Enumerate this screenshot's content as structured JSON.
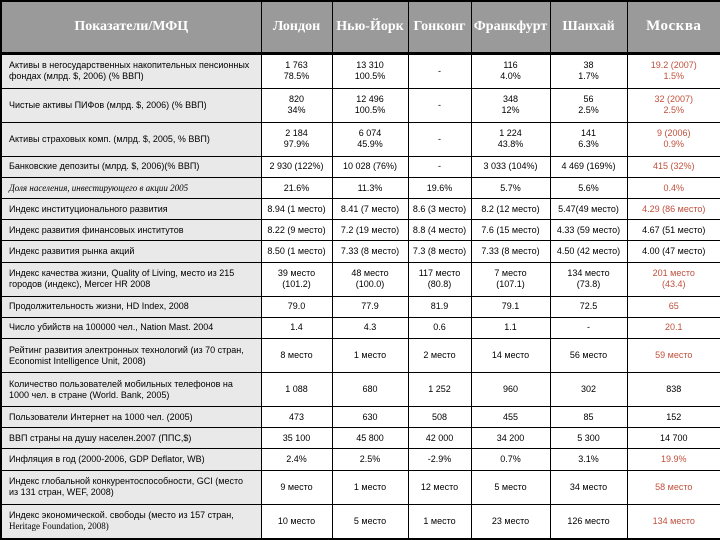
{
  "colors": {
    "moscow_value_highlight": "#c0503c",
    "header_background": "#9a9a9a",
    "header_text": "#ffffff",
    "label_column_background": "#e9e9e9",
    "body_cell_background": "#ffffff",
    "border": "#000000"
  },
  "chart_data": {
    "type": "table",
    "header_label": "Показатели/МФЦ",
    "columns": [
      "Лондон",
      "Нью-­Йорк",
      "Гонконг",
      "Франкфурт",
      "Шанхай",
      "Москва"
    ],
    "rows": [
      {
        "label": "Активы в негосударственных накопительных пенсионных фондах (млрд. $, 2006) (% ВВП)",
        "values": [
          "1 763\n78.5%",
          "13 310\n100.5%",
          "-",
          "116\n4.0%",
          "38\n1.7%",
          "19.2 (2007)\n1.5%"
        ],
        "moscow_red": true
      },
      {
        "label": "Чистые активы ПИФов (млрд. $, 2006) (% ВВП)",
        "values": [
          "820\n34%",
          "12 496\n100.5%",
          "-",
          "348\n12%",
          "56\n2.5%",
          "32 (2007)\n2.5%"
        ],
        "moscow_red": true
      },
      {
        "label": "Активы страховых комп. (млрд. $, 2005, % ВВП)",
        "values": [
          "2 184\n97.9%",
          "6 074\n45.9%",
          "-",
          "1 224\n43.8%",
          "141\n6.3%",
          "9 (2006)\n0.9%"
        ],
        "moscow_red": true
      },
      {
        "label": "Банковские депозиты (млрд. $, 2006)(% ВВП)",
        "values": [
          "2 930 (122%)",
          "10 028 (76%)",
          "-",
          "3 033 (104%)",
          "4 469 (169%)",
          "415 (32%)"
        ],
        "moscow_red": true
      },
      {
        "label": "Доля населения, инвестирующего в акции 2005",
        "label_class": "italic-serif",
        "values": [
          "21.6%",
          "11.3%",
          "19.6%",
          "5.7%",
          "5.6%",
          "0.4%"
        ],
        "moscow_red": true
      },
      {
        "label": "Индекс институционального развития",
        "values": [
          "8.94 (1 место)",
          "8.41 (7 место)",
          "8.6 (3 место)",
          "8.2 (12 место)",
          "5.47(49 место)",
          "4.29 (86 место)"
        ],
        "moscow_red": true
      },
      {
        "label": "Индекс развития финансовых институтов",
        "values": [
          "8.22 (9 место)",
          "7.2 (19 место)",
          "8.8 (4 место)",
          "7.6 (15 место)",
          "4.33 (59 место)",
          "4.67 (51 место)"
        ],
        "moscow_red": false
      },
      {
        "label": "Индекс развития рынка акций",
        "values": [
          "8.50 (1 место)",
          "7.33 (8 место)",
          "7.3 (8 место)",
          "7.33 (8 место)",
          "4.50 (42 место)",
          "4.00 (47 место)"
        ],
        "moscow_red": false
      },
      {
        "label": "Индекс качества жизни, Quality of Living,  место из 215 городов (индекс), Mercer HR 2008",
        "values": [
          "39 место\n(101.2)",
          "48 место\n(100.0)",
          "117 место\n(80.8)",
          "7 место\n(107.1)",
          "134  место\n(73.8)",
          "201  место\n(43.4)"
        ],
        "moscow_red": true
      },
      {
        "label": "Продолжительность жизни, HD Index, 2008",
        "values": [
          "79.0",
          "77.9",
          "81.9",
          "79.1",
          "72.5",
          "65"
        ],
        "moscow_red": true
      },
      {
        "label": "Число убийств на 100000 чел., Nation Mast. 2004",
        "values": [
          "1.4",
          "4.3",
          "0.6",
          "1.1",
          "-",
          "20.1"
        ],
        "moscow_red": true
      },
      {
        "label": "Рейтинг развития электронных технологий (из 70 стран, Economist Intelligence Unit, 2008)",
        "values": [
          "8 место",
          "1 место",
          "2 место",
          "14 место",
          "56 место",
          "59 место"
        ],
        "moscow_red": true
      },
      {
        "label": "Количество пользователей мобильных телефонов на 1000 чел. в стране (World. Bank, 2005)",
        "values": [
          "1 088",
          "680",
          "1 252",
          "960",
          "302",
          "838"
        ],
        "moscow_red": false
      },
      {
        "label": "Пользователи Интернет на 1000 чел. (2005)",
        "values": [
          "473",
          "630",
          "508",
          "455",
          "85",
          "152"
        ],
        "moscow_red": false
      },
      {
        "label": "ВВП страны на душу населен.2007 (ППС,$)",
        "values": [
          "35 100",
          "45 800",
          "42 000",
          "34 200",
          "5 300",
          "14 700"
        ],
        "moscow_red": false
      },
      {
        "label": "Инфляция в год (2000-2006, GDP Deflator, WB)",
        "values": [
          "2.4%",
          "2.5%",
          "-2.9%",
          "0.7%",
          "3.1%",
          "19.9%"
        ],
        "moscow_red": true
      },
      {
        "label": "Индекс глобальной конкурентоспособности, GCI (место из 131 стран, WEF, 2008)",
        "values": [
          "9 место",
          "1 место",
          "12 место",
          "5 место",
          "34 место",
          "58 место"
        ],
        "moscow_red": true
      },
      {
        "label": "Индекс экономической. свободы (место из 157 стран, ",
        "label_tail": "Heritage Foundation, 2008)",
        "values": [
          "10 место",
          "5 место",
          "1 место",
          "23 место",
          "126 место",
          "134 место"
        ],
        "moscow_red": true
      }
    ]
  }
}
